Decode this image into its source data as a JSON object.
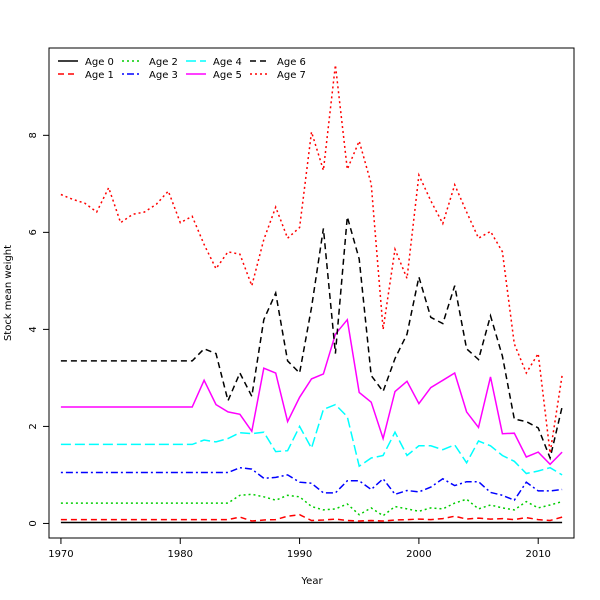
{
  "chart_data": {
    "type": "line",
    "title": "",
    "xlabel": "Year",
    "ylabel": "Stock mean weight",
    "xlim": [
      1969,
      2013
    ],
    "ylim": [
      -0.3,
      9.8
    ],
    "x_ticks": [
      1970,
      1980,
      1990,
      2000,
      2010
    ],
    "y_ticks": [
      0,
      2,
      4,
      6,
      8
    ],
    "grid": false,
    "legend_position": "top-left",
    "x": [
      1970,
      1971,
      1972,
      1973,
      1974,
      1975,
      1976,
      1977,
      1978,
      1979,
      1980,
      1981,
      1982,
      1983,
      1984,
      1985,
      1986,
      1987,
      1988,
      1989,
      1990,
      1991,
      1992,
      1993,
      1994,
      1995,
      1996,
      1997,
      1998,
      1999,
      2000,
      2001,
      2002,
      2003,
      2004,
      2005,
      2006,
      2007,
      2008,
      2009,
      2010,
      2011,
      2012
    ],
    "series": [
      {
        "name": "Age 0",
        "color": "#000000",
        "dash": "solid",
        "values": [
          0.02,
          0.02,
          0.02,
          0.02,
          0.02,
          0.02,
          0.02,
          0.02,
          0.02,
          0.02,
          0.02,
          0.02,
          0.02,
          0.02,
          0.02,
          0.02,
          0.02,
          0.02,
          0.02,
          0.02,
          0.02,
          0.02,
          0.02,
          0.02,
          0.02,
          0.02,
          0.02,
          0.02,
          0.02,
          0.02,
          0.02,
          0.02,
          0.02,
          0.02,
          0.02,
          0.02,
          0.02,
          0.02,
          0.02,
          0.02,
          0.02,
          0.02,
          0.02
        ]
      },
      {
        "name": "Age 1",
        "color": "#ff0000",
        "dash": "dashed",
        "values": [
          0.08,
          0.08,
          0.08,
          0.08,
          0.08,
          0.08,
          0.08,
          0.08,
          0.08,
          0.08,
          0.08,
          0.08,
          0.08,
          0.08,
          0.08,
          0.13,
          0.05,
          0.07,
          0.08,
          0.15,
          0.18,
          0.06,
          0.07,
          0.09,
          0.06,
          0.05,
          0.06,
          0.05,
          0.07,
          0.08,
          0.09,
          0.08,
          0.1,
          0.15,
          0.09,
          0.11,
          0.09,
          0.1,
          0.08,
          0.12,
          0.08,
          0.06,
          0.13
        ]
      },
      {
        "name": "Age 2",
        "color": "#00cd00",
        "dash": "dotted",
        "values": [
          0.42,
          0.42,
          0.42,
          0.42,
          0.42,
          0.42,
          0.42,
          0.42,
          0.42,
          0.42,
          0.42,
          0.42,
          0.42,
          0.42,
          0.42,
          0.58,
          0.6,
          0.55,
          0.48,
          0.58,
          0.55,
          0.35,
          0.28,
          0.3,
          0.4,
          0.18,
          0.32,
          0.16,
          0.35,
          0.3,
          0.25,
          0.32,
          0.3,
          0.42,
          0.5,
          0.3,
          0.38,
          0.32,
          0.28,
          0.45,
          0.32,
          0.38,
          0.45
        ]
      },
      {
        "name": "Age 3",
        "color": "#0000ff",
        "dash": "dashdot",
        "values": [
          1.05,
          1.05,
          1.05,
          1.05,
          1.05,
          1.05,
          1.05,
          1.05,
          1.05,
          1.05,
          1.05,
          1.05,
          1.05,
          1.05,
          1.05,
          1.15,
          1.12,
          0.93,
          0.95,
          1.0,
          0.85,
          0.83,
          0.63,
          0.63,
          0.88,
          0.88,
          0.7,
          0.92,
          0.6,
          0.68,
          0.65,
          0.75,
          0.92,
          0.78,
          0.86,
          0.86,
          0.64,
          0.58,
          0.48,
          0.85,
          0.67,
          0.67,
          0.7
        ]
      },
      {
        "name": "Age 4",
        "color": "#00ffff",
        "dash": "longdash",
        "values": [
          1.63,
          1.63,
          1.63,
          1.63,
          1.63,
          1.63,
          1.63,
          1.63,
          1.63,
          1.63,
          1.63,
          1.63,
          1.72,
          1.68,
          1.75,
          1.87,
          1.85,
          1.88,
          1.48,
          1.5,
          2.0,
          1.55,
          2.35,
          2.45,
          2.2,
          1.18,
          1.35,
          1.4,
          1.88,
          1.4,
          1.6,
          1.6,
          1.52,
          1.62,
          1.25,
          1.7,
          1.6,
          1.4,
          1.28,
          1.03,
          1.08,
          1.15,
          1.0
        ]
      },
      {
        "name": "Age 5",
        "color": "#ff00ff",
        "dash": "solid",
        "values": [
          2.4,
          2.4,
          2.4,
          2.4,
          2.4,
          2.4,
          2.4,
          2.4,
          2.4,
          2.4,
          2.4,
          2.4,
          2.95,
          2.45,
          2.3,
          2.25,
          1.9,
          3.2,
          3.1,
          2.1,
          2.6,
          2.98,
          3.08,
          3.9,
          4.2,
          2.7,
          2.5,
          1.75,
          2.72,
          2.93,
          2.47,
          2.8,
          2.95,
          3.1,
          2.3,
          1.98,
          3.02,
          1.85,
          1.86,
          1.37,
          1.47,
          1.22,
          1.47
        ]
      },
      {
        "name": "Age 6",
        "color": "#000000",
        "dash": "dashed",
        "values": [
          3.35,
          3.35,
          3.35,
          3.35,
          3.35,
          3.35,
          3.35,
          3.35,
          3.35,
          3.35,
          3.35,
          3.35,
          3.6,
          3.5,
          2.53,
          3.1,
          2.62,
          4.2,
          4.75,
          3.35,
          3.1,
          4.45,
          6.08,
          3.5,
          6.32,
          5.45,
          3.05,
          2.72,
          3.4,
          3.9,
          5.08,
          4.25,
          4.12,
          4.9,
          3.6,
          3.38,
          4.28,
          3.45,
          2.15,
          2.1,
          1.97,
          1.35,
          2.4
        ]
      },
      {
        "name": "Age 7",
        "color": "#ff0000",
        "dash": "dotted",
        "values": [
          6.78,
          6.68,
          6.6,
          6.42,
          6.92,
          6.2,
          6.37,
          6.42,
          6.58,
          6.85,
          6.2,
          6.33,
          5.75,
          5.25,
          5.6,
          5.55,
          4.9,
          5.85,
          6.52,
          5.88,
          6.1,
          8.07,
          7.28,
          9.45,
          7.3,
          7.88,
          7.0,
          4.0,
          5.65,
          5.05,
          7.18,
          6.65,
          6.18,
          6.98,
          6.42,
          5.88,
          6.02,
          5.6,
          3.7,
          3.1,
          3.5,
          1.45,
          3.05
        ]
      }
    ]
  }
}
